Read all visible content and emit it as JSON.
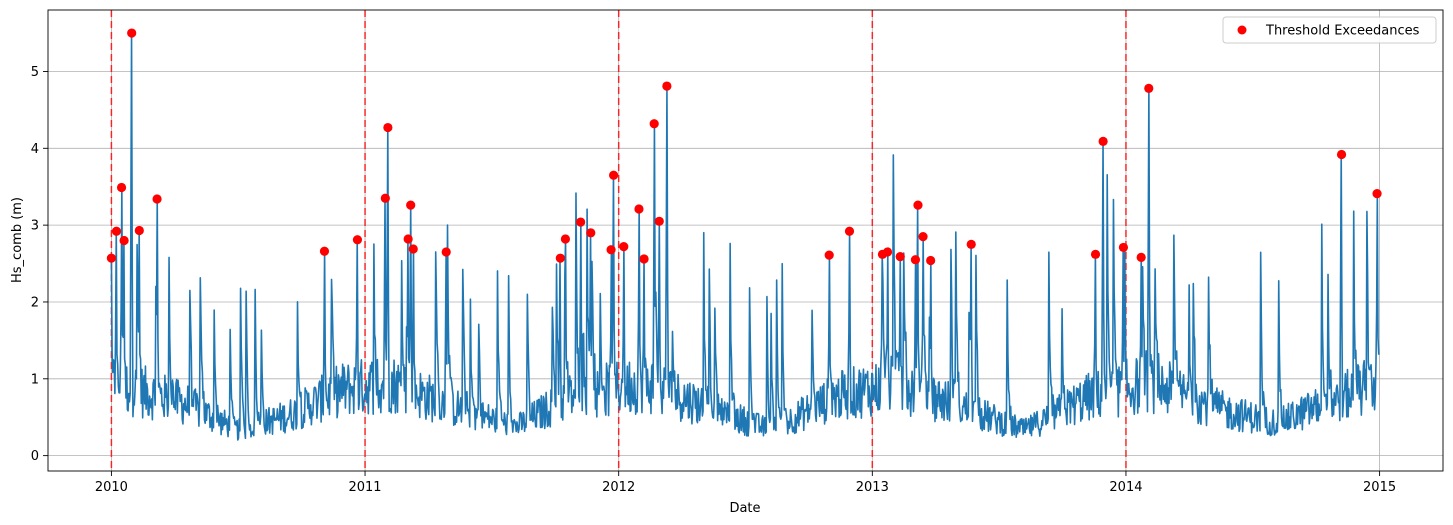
{
  "chart_data": {
    "type": "line",
    "title": "",
    "xlabel": "Date",
    "ylabel": "Hs_comb (m)",
    "xlim": [
      2009.75,
      2015.25
    ],
    "ylim": [
      -0.2,
      5.8
    ],
    "x_ticks": [
      2010,
      2011,
      2012,
      2013,
      2014,
      2015
    ],
    "x_tick_labels": [
      "2010",
      "2011",
      "2012",
      "2013",
      "2014",
      "2015"
    ],
    "y_ticks": [
      0,
      1,
      2,
      3,
      4,
      5
    ],
    "y_tick_labels": [
      "0",
      "1",
      "2",
      "3",
      "4",
      "5"
    ],
    "grid": true,
    "legend": {
      "position": "top-right",
      "entries": [
        "Threshold Exceedances"
      ]
    },
    "year_boundaries": [
      2010,
      2011,
      2012,
      2013,
      2014
    ],
    "colors": {
      "series": "#1f77b4",
      "exceedance": "#ff0000",
      "boundary": "#ff0000",
      "grid": "#b0b0b0"
    },
    "series": [
      {
        "name": "Threshold Exceedances",
        "kind": "scatter",
        "x": [
          2010.0,
          2010.02,
          2010.04,
          2010.05,
          2010.08,
          2010.11,
          2010.18,
          2010.84,
          2010.97,
          2011.08,
          2011.09,
          2011.17,
          2011.18,
          2011.19,
          2011.32,
          2011.77,
          2011.79,
          2011.85,
          2011.89,
          2011.97,
          2011.98,
          2012.02,
          2012.08,
          2012.1,
          2012.14,
          2012.16,
          2012.19,
          2012.83,
          2012.91,
          2013.04,
          2013.06,
          2013.11,
          2013.17,
          2013.18,
          2013.2,
          2013.23,
          2013.39,
          2013.88,
          2013.91,
          2013.99,
          2014.06,
          2014.09,
          2014.85,
          2014.99
        ],
        "y": [
          2.57,
          2.92,
          3.49,
          2.8,
          5.5,
          2.93,
          3.34,
          2.66,
          2.81,
          3.35,
          4.27,
          2.82,
          3.26,
          2.69,
          2.65,
          2.57,
          2.82,
          3.04,
          2.9,
          2.68,
          3.65,
          2.72,
          3.21,
          2.56,
          4.32,
          3.05,
          4.81,
          2.61,
          2.92,
          2.62,
          2.65,
          2.59,
          2.55,
          3.26,
          2.85,
          2.54,
          2.75,
          2.62,
          4.09,
          2.71,
          2.58,
          4.78,
          3.92,
          3.41
        ]
      },
      {
        "name": "Hs_comb",
        "kind": "line",
        "note": "daily series 2010-2015, baseline values generated from shown envelope",
        "base_levels": [
          {
            "x": 2010.0,
            "y": 1.0
          },
          {
            "x": 2010.3,
            "y": 0.7
          },
          {
            "x": 2010.5,
            "y": 0.35
          },
          {
            "x": 2010.7,
            "y": 0.55
          },
          {
            "x": 2010.9,
            "y": 0.9
          },
          {
            "x": 2011.1,
            "y": 1.0
          },
          {
            "x": 2011.4,
            "y": 0.6
          },
          {
            "x": 2011.6,
            "y": 0.4
          },
          {
            "x": 2011.8,
            "y": 0.8
          },
          {
            "x": 2012.1,
            "y": 1.0
          },
          {
            "x": 2012.4,
            "y": 0.6
          },
          {
            "x": 2012.6,
            "y": 0.35
          },
          {
            "x": 2012.85,
            "y": 0.8
          },
          {
            "x": 2013.1,
            "y": 1.0
          },
          {
            "x": 2013.4,
            "y": 0.6
          },
          {
            "x": 2013.6,
            "y": 0.35
          },
          {
            "x": 2013.85,
            "y": 0.8
          },
          {
            "x": 2014.1,
            "y": 1.0
          },
          {
            "x": 2014.4,
            "y": 0.6
          },
          {
            "x": 2014.6,
            "y": 0.45
          },
          {
            "x": 2014.85,
            "y": 0.8
          },
          {
            "x": 2015.0,
            "y": 1.0
          }
        ]
      }
    ]
  }
}
